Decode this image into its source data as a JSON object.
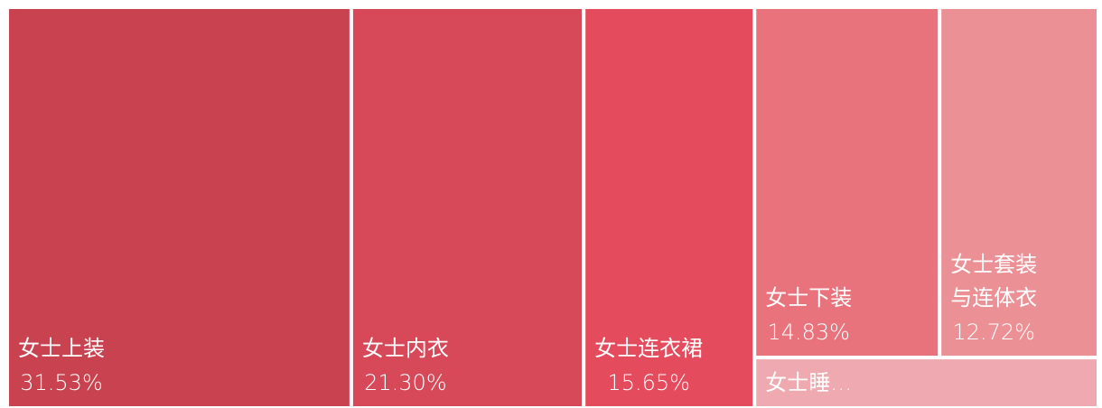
{
  "chart_data": {
    "type": "treemap",
    "categories": [
      "女士上装",
      "女士内衣",
      "女士连衣裙",
      "女士下装",
      "女士套装与连体衣",
      "女士睡…"
    ],
    "values": [
      31.53,
      21.3,
      15.65,
      14.83,
      12.72,
      3.97
    ],
    "value_labels": [
      "31.53%",
      "21.30%",
      "15.65%",
      "14.83%",
      "12.72%",
      null
    ],
    "colors": [
      "#c8434f",
      "#d74959",
      "#e44b5c",
      "#e8737c",
      "#eb9196",
      "#eeaab0"
    ]
  }
}
